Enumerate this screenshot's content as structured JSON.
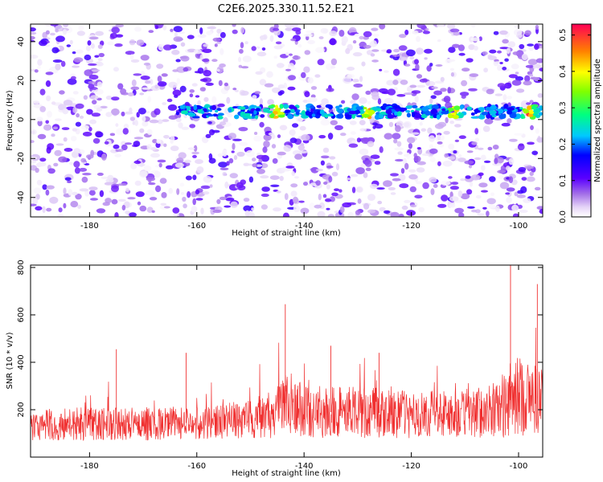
{
  "figure_title": "C2E6.2025.330.11.52.E21",
  "colors": {
    "snr_line": "#f03030",
    "frame": "#000000",
    "background": "#ffffff"
  },
  "chart_data": [
    {
      "type": "heatmap",
      "name": "spectrogram",
      "xlabel": "Height of straight line (km)",
      "ylabel": "Frequency (Hz)",
      "xlim": [
        -191,
        -95.5
      ],
      "ylim": [
        -50,
        49
      ],
      "x_ticks": [
        -180,
        -160,
        -140,
        -120,
        -100
      ],
      "x_tick_labels": [
        "-180",
        "-160",
        "-140",
        "-120",
        "-100"
      ],
      "y_ticks": [
        -40,
        -20,
        0,
        20,
        40
      ],
      "y_tick_labels": [
        "-40",
        "-20",
        "0",
        "20",
        "40"
      ],
      "colorbar": {
        "label": "Normalized spectral amplitude",
        "range": [
          0,
          0.53
        ],
        "ticks": [
          0,
          0.1,
          0.2,
          0.3,
          0.4,
          0.5
        ],
        "tick_labels": [
          "0.0",
          "0.1",
          "0.2",
          "0.3",
          "0.4",
          "0.5"
        ]
      },
      "signal_band": {
        "frequency_hz": 4,
        "x_start": -164,
        "x_end": -95.5,
        "peak_amplitude": 0.53,
        "peak_heights": [
          -145,
          -128,
          -112,
          -98
        ]
      },
      "background_amplitude_range": [
        0.0,
        0.12
      ]
    },
    {
      "type": "line",
      "name": "snr",
      "xlabel": "Height of straight line (km)",
      "ylabel": "SNR (10 * v/v)",
      "xlim": [
        -191,
        -95.5
      ],
      "ylim": [
        0,
        810
      ],
      "x_ticks": [
        -180,
        -160,
        -140,
        -120,
        -100
      ],
      "x_tick_labels": [
        "-180",
        "-160",
        "-140",
        "-120",
        "-100"
      ],
      "y_ticks": [
        200,
        400,
        600,
        800
      ],
      "y_tick_labels": [
        "200",
        "400",
        "600",
        "800"
      ],
      "envelope": {
        "x": [
          -191,
          -180,
          -170,
          -160,
          -150,
          -145,
          -143,
          -140,
          -130,
          -120,
          -110,
          -104,
          -101.5,
          -100,
          -98,
          -95.5
        ],
        "baseline": [
          140,
          140,
          140,
          145,
          160,
          190,
          240,
          190,
          190,
          180,
          180,
          200,
          240,
          260,
          250,
          250
        ],
        "spread": [
          70,
          70,
          70,
          70,
          80,
          110,
          140,
          110,
          110,
          100,
          100,
          120,
          160,
          170,
          160,
          160
        ]
      },
      "spikes": [
        {
          "x": -175,
          "y": 455
        },
        {
          "x": -162,
          "y": 440
        },
        {
          "x": -143.5,
          "y": 645
        },
        {
          "x": -135,
          "y": 470
        },
        {
          "x": -126,
          "y": 440
        },
        {
          "x": -101.5,
          "y": 810
        },
        {
          "x": -96.5,
          "y": 730
        }
      ],
      "n_points": 1400,
      "seed": 7
    }
  ]
}
